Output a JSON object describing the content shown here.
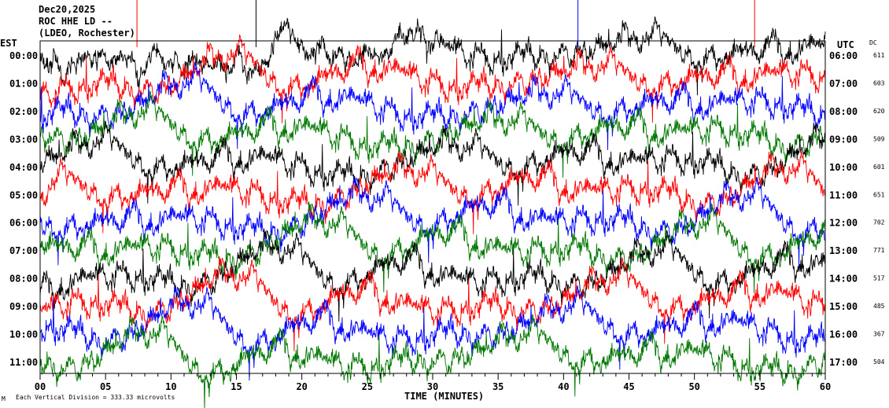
{
  "header": {
    "date": "Dec20,2025",
    "station": "ROC HHE LD --",
    "location": "(LDEO, Rochester)"
  },
  "left_zone_label": "EST",
  "right_zone_label": "UTC",
  "dc_header": "DC",
  "footer_note": "Each Vertical Division = 333.33 microvolts",
  "footer_mark": "M",
  "colors": {
    "black": "#000000",
    "red": "#ff0000",
    "blue": "#0000ff",
    "green": "#007700"
  },
  "chart_data": {
    "type": "line",
    "xlabel": "TIME (MINUTES)",
    "xlim": [
      0,
      60
    ],
    "xticks": [
      "00",
      "05",
      "10",
      "15",
      "20",
      "25",
      "30",
      "35",
      "40",
      "45",
      "50",
      "55",
      "60"
    ],
    "rows": [
      {
        "est": "00:00",
        "utc": "06:00",
        "dc": "611",
        "color": "#000000"
      },
      {
        "est": "01:00",
        "utc": "07:00",
        "dc": "603",
        "color": "#ff0000"
      },
      {
        "est": "02:00",
        "utc": "08:00",
        "dc": "620",
        "color": "#0000ff"
      },
      {
        "est": "03:00",
        "utc": "09:00",
        "dc": "509",
        "color": "#007700"
      },
      {
        "est": "04:00",
        "utc": "10:00",
        "dc": "601",
        "color": "#000000"
      },
      {
        "est": "05:00",
        "utc": "11:00",
        "dc": "651",
        "color": "#ff0000"
      },
      {
        "est": "06:00",
        "utc": "12:00",
        "dc": "702",
        "color": "#0000ff"
      },
      {
        "est": "07:00",
        "utc": "13:00",
        "dc": "771",
        "color": "#007700"
      },
      {
        "est": "08:00",
        "utc": "14:00",
        "dc": "517",
        "color": "#000000"
      },
      {
        "est": "09:00",
        "utc": "15:00",
        "dc": "485",
        "color": "#ff0000"
      },
      {
        "est": "10:00",
        "utc": "16:00",
        "dc": "367",
        "color": "#0000ff"
      },
      {
        "est": "11:00",
        "utc": "17:00",
        "dc": "504",
        "color": "#007700"
      }
    ]
  }
}
